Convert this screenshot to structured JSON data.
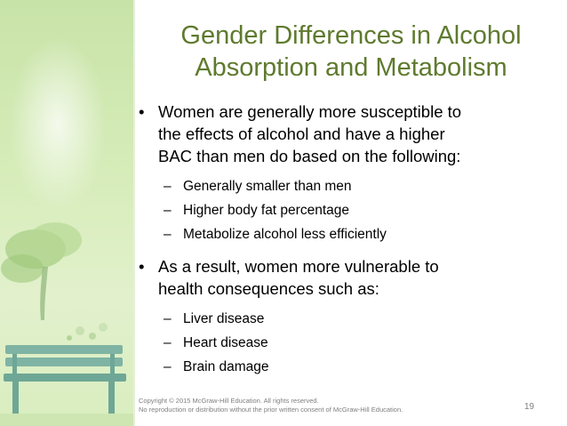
{
  "title": {
    "line1": "Gender Differences in Alcohol",
    "line2": "Absorption and Metabolism"
  },
  "bullets": [
    {
      "lines": [
        "Women are generally more susceptible to",
        "the effects of alcohol and have a higher",
        "BAC than men do based on the following:"
      ],
      "subitems": [
        "Generally smaller than men",
        "Higher body fat percentage",
        "Metabolize alcohol less efficiently"
      ]
    },
    {
      "lines": [
        "As a result, women more vulnerable to",
        "health consequences such as:"
      ],
      "subitems": [
        "Liver disease",
        "Heart disease",
        "Brain damage"
      ]
    }
  ],
  "bullet_glyph": "•",
  "dash_glyph": "–",
  "footer": {
    "line1": "Copyright © 2015 McGraw-Hill Education. All rights reserved.",
    "line2": "No reproduction or distribution without the prior written consent of McGraw-Hill Education."
  },
  "page_number": "19",
  "colors": {
    "title": "#5f7a2e",
    "panel": "#d6ecb9",
    "footer_text": "#7f7f7f"
  },
  "icons": {
    "tree": "tree-illustration",
    "bench": "bench-illustration"
  }
}
